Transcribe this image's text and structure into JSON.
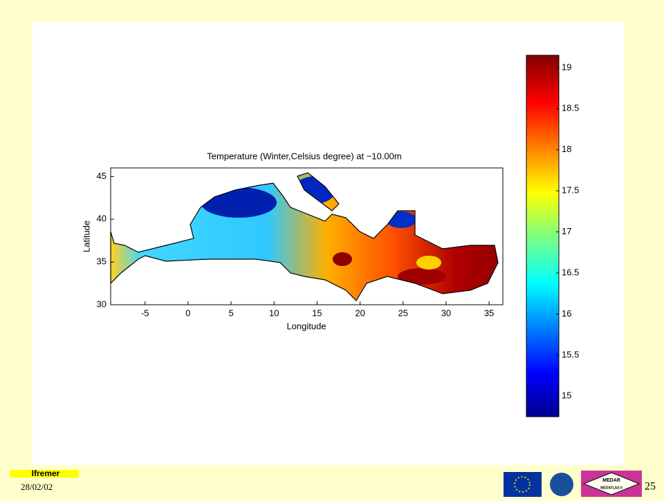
{
  "chart_data": {
    "type": "map",
    "title": "Temperature (Winter,Celsius degree) at −10.00m",
    "xlabel": "Longitude",
    "ylabel": "Latitude",
    "xlim": [
      -9,
      36.6
    ],
    "xticks": [
      -5,
      0,
      5,
      10,
      15,
      20,
      25,
      30,
      35
    ],
    "ylim": [
      30,
      46
    ],
    "yticks": [
      30,
      35,
      40,
      45
    ],
    "colorbar": {
      "lim": [
        14.75,
        19.15
      ],
      "ticks": [
        15,
        15.5,
        16,
        16.5,
        17,
        17.5,
        18,
        18.5,
        19
      ]
    }
  },
  "footer": {
    "logo": "Ifremer",
    "date": "28/02/02",
    "page": "25",
    "badge_top": "MEDAR",
    "badge_bottom": "MEDATLAS II"
  }
}
